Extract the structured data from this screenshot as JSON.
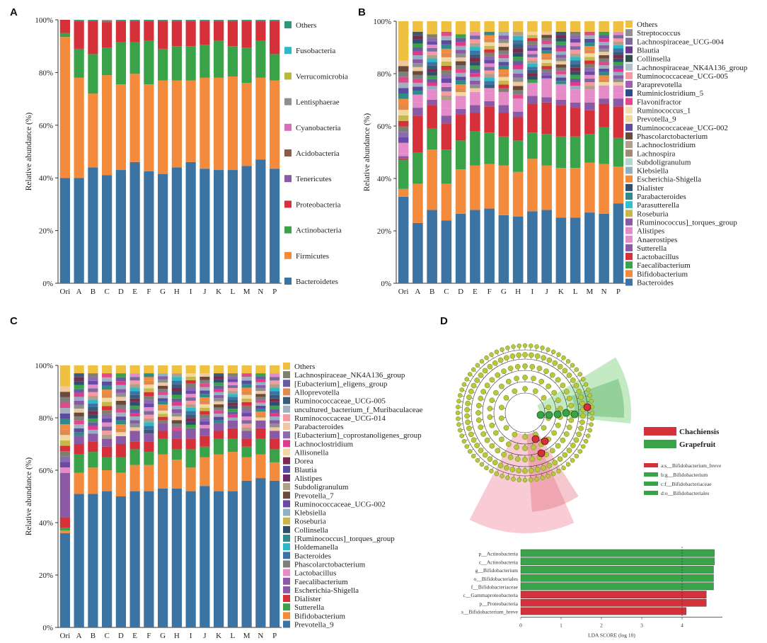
{
  "colors": {
    "Others": "#f0c040",
    "Prevotella_9": "#3b74a2",
    "Bacteroides": "#3b74a2",
    "Bifidobacterium": "#f48a3c",
    "Sutterella": "#3aa34a",
    "Faecalibacterium": "#3aa34a",
    "Lactobacillus": "#d6303a",
    "Dialister": "#d6303a",
    "Escherichia-Shigella": "#8a5aa6",
    "Anaerostipes": "#8a5aa6",
    "Alistipes": "#e58bc8",
    "Phascolarctobacterium": "#7f7f7f",
    "Holdemanella": "#2fb8c8",
    "Ruminococcus_torques": "#2f8a8a",
    "Collinsella": "#2f4f6a",
    "Roseburia": "#c8b84a",
    "Klebsiella": "#8fb0c0",
    "Ruminococcaceae_UCG-002": "#6a4aa6",
    "Prevotella_7": "#6a4a3a",
    "Subdoligranulum": "#b0a08a",
    "Blautia": "#5a4aa0",
    "Dorea": "#7a2a4a",
    "Allisonella": "#f0d8a0",
    "Lachnoclostridium": "#e0388a",
    "Eubacterium_coprostanoligenes": "#8a6ab0",
    "Parabacteroides": "#f0c8a0",
    "Ruminococcaceae_UCG-014": "#f49aa0",
    "uncultured_Muribaculaceae": "#a0b0c0",
    "Ruminococcaceae_UCG-005": "#3a5a7a",
    "Alloprevotella": "#e08a50",
    "Eubacterium_eligens": "#6a5aa0",
    "Lachnospiraceae_NK4A136": "#7f7f6f",
    "Streptococcus": "#8f8f8f",
    "Lachnospiraceae_UCG-004": "#7a6aa0",
    "Flavonifractor": "#e04a8a",
    "Ruminiclostridium_5": "#2a4a8a",
    "Paraprevotella": "#a060b0",
    "Ruminococcus_1": "#f0e0b0",
    "Parasutterella": "#30c0d0",
    "Lachnospira": "#a08a70",
    "Escherichia": "#f48a3c",
    "Fusobacteria": "#2fb8c8",
    "Verrucomicrobia": "#b8b83a",
    "Lentisphaerae": "#8f8f8f",
    "Cyanobacteria": "#d86fb8",
    "Acidobacteria": "#8a5a4a",
    "Tenericutes": "#8a5aa6",
    "Proteobacteria": "#d6303a",
    "Actinobacteria": "#3aa34a",
    "Firmicutes": "#f48a3c",
    "Bacteroidetes": "#3b74a2",
    "OthersA": "#2a9a7a",
    "lefse_red": "#d6303a",
    "lefse_green": "#3aa34a",
    "cladogram_node": "#b8c83a"
  },
  "chart_data": [
    {
      "type": "bar",
      "panel": "A",
      "ylabel": "Relative abundance (%)",
      "yticks": [
        "0%",
        "20%",
        "40%",
        "60%",
        "80%",
        "100%"
      ],
      "categories": [
        "Ori",
        "A",
        "B",
        "C",
        "D",
        "E",
        "F",
        "G",
        "H",
        "I",
        "J",
        "K",
        "L",
        "M",
        "N",
        "P"
      ],
      "series": [
        {
          "name": "Bacteroidetes",
          "values": [
            40,
            40,
            44,
            41,
            43,
            46,
            42.5,
            41.5,
            44,
            46,
            43.5,
            43,
            43,
            44.5,
            47,
            43.5
          ]
        },
        {
          "name": "Firmicutes",
          "values": [
            53.5,
            38,
            28,
            38,
            32.5,
            33.5,
            33,
            35.5,
            33,
            31,
            34.5,
            35,
            35.5,
            31.5,
            31,
            33.5
          ]
        },
        {
          "name": "Actinobacteria",
          "values": [
            1.5,
            11,
            15,
            10.5,
            16,
            12,
            16.5,
            12,
            13,
            13,
            12.5,
            14,
            11.5,
            13.5,
            14,
            10
          ]
        },
        {
          "name": "Proteobacteria",
          "values": [
            5,
            10.5,
            12.5,
            9.5,
            8,
            8,
            7.5,
            10.5,
            9.5,
            9.5,
            9,
            7.5,
            9.5,
            10,
            7.5,
            12.5
          ]
        },
        {
          "name": "Tenericutes",
          "values": [
            0,
            0,
            0,
            0,
            0,
            0,
            0,
            0,
            0,
            0,
            0,
            0,
            0,
            0,
            0,
            0
          ]
        },
        {
          "name": "Acidobacteria",
          "values": [
            0,
            0,
            0,
            0.5,
            0,
            0,
            0,
            0,
            0,
            0,
            0,
            0,
            0,
            0,
            0,
            0
          ]
        },
        {
          "name": "Cyanobacteria",
          "values": [
            0,
            0,
            0,
            0,
            0,
            0,
            0,
            0,
            0,
            0,
            0,
            0,
            0,
            0,
            0,
            0
          ]
        },
        {
          "name": "Lentisphaerae",
          "values": [
            0,
            0,
            0,
            0.5,
            0,
            0,
            0,
            0,
            0,
            0,
            0,
            0,
            0,
            0,
            0,
            0
          ]
        },
        {
          "name": "Verrucomicrobia",
          "values": [
            0,
            0,
            0,
            0,
            0,
            0,
            0,
            0,
            0,
            0,
            0,
            0,
            0,
            0,
            0,
            0
          ]
        },
        {
          "name": "Fusobacteria",
          "values": [
            0,
            0,
            0,
            0,
            0,
            0,
            0,
            0,
            0,
            0,
            0,
            0,
            0,
            0,
            0,
            0
          ]
        },
        {
          "name": "Others",
          "values": [
            0,
            0.5,
            0.5,
            0,
            0.5,
            0.5,
            0.5,
            0.5,
            0.5,
            0.5,
            0.5,
            0.5,
            0.5,
            0.5,
            0.5,
            0.5
          ]
        }
      ],
      "legend": [
        "Others",
        "Fusobacteria",
        "Verrucomicrobia",
        "Lentisphaerae",
        "Cyanobacteria",
        "Acidobacteria",
        "Tenericutes",
        "Proteobacteria",
        "Actinobacteria",
        "Firmicutes",
        "Bacteroidetes"
      ]
    },
    {
      "type": "bar",
      "panel": "B",
      "ylabel": "Relative abundance (%)",
      "yticks": [
        "0%",
        "20%",
        "40%",
        "60%",
        "80%",
        "100%"
      ],
      "categories": [
        "Ori",
        "A",
        "B",
        "C",
        "D",
        "E",
        "F",
        "G",
        "H",
        "I",
        "J",
        "K",
        "L",
        "M",
        "N",
        "P"
      ],
      "series": [
        {
          "name": "Bacteroides",
          "values": [
            33,
            23,
            28,
            24,
            26.5,
            28,
            28.5,
            26,
            25.5,
            27.5,
            28,
            25,
            25,
            27,
            26.5,
            30.5
          ]
        },
        {
          "name": "Bifidobacterium",
          "values": [
            3,
            15,
            23,
            14,
            17,
            17,
            17,
            19,
            17,
            20,
            17,
            19,
            19,
            19,
            19,
            14
          ]
        },
        {
          "name": "Faecalibacterium",
          "values": [
            11,
            12,
            8,
            13,
            11,
            13,
            12,
            11,
            12,
            10,
            12,
            12,
            12,
            11,
            14,
            11
          ]
        },
        {
          "name": "Lactobacillus",
          "values": [
            0.5,
            14,
            9,
            10,
            10,
            7,
            10,
            9,
            9,
            11,
            12,
            12,
            11,
            9,
            9,
            12
          ]
        },
        {
          "name": "Sutterella",
          "values": [
            1,
            3,
            2,
            3,
            2,
            3,
            2,
            3,
            2,
            3,
            2,
            2,
            2,
            3,
            2,
            3
          ]
        },
        {
          "name": "Anaerostipes",
          "values": [
            1,
            2,
            2,
            3,
            3,
            2,
            3,
            2,
            3,
            2,
            4,
            3,
            3,
            2,
            3,
            2
          ]
        },
        {
          "name": "Alistipes",
          "values": [
            2,
            3,
            2,
            3,
            2,
            3,
            2,
            3,
            2,
            3,
            2,
            3,
            2,
            3,
            2,
            3
          ]
        },
        {
          "name": "Others",
          "values": [
            15,
            4,
            5,
            4,
            5,
            4,
            4,
            4,
            4,
            4,
            4,
            4,
            4,
            4,
            4,
            4
          ]
        }
      ],
      "legend": [
        "Others",
        "Streptococcus",
        "Lachnospiraceae_UCG-004",
        "Blautia",
        "Collinsella",
        "Lachnospiraceae_NK4A136_group",
        "Ruminococcaceae_UCG-005",
        "Paraprevotella",
        "Ruminiclostridium_5",
        "Flavonifractor",
        "Ruminococcus_1",
        "Prevotella_9",
        "Ruminococcaceae_UCG-002",
        "Phascolarctobacterium",
        "Lachnoclostridium",
        "Lachnospira",
        "Subdoligranulum",
        "Klebsiella",
        "Escherichia-Shigella",
        "Dialister",
        "Parabacteroides",
        "Parasutterella",
        "Roseburia",
        "[Ruminococcus]_torques_group",
        "Alistipes",
        "Anaerostipes",
        "Sutterella",
        "Lactobacillus",
        "Faecalibacterium",
        "Bifidobacterium",
        "Bacteroides"
      ]
    },
    {
      "type": "bar",
      "panel": "C",
      "ylabel": "Relative abundance (%)",
      "yticks": [
        "0%",
        "20%",
        "40%",
        "60%",
        "80%",
        "100%"
      ],
      "categories": [
        "Ori",
        "A",
        "B",
        "C",
        "D",
        "E",
        "F",
        "G",
        "H",
        "I",
        "J",
        "K",
        "L",
        "M",
        "N",
        "P"
      ],
      "series": [
        {
          "name": "Prevotella_9",
          "values": [
            36,
            51,
            51,
            52,
            50,
            52,
            52,
            53,
            53,
            52,
            54,
            52,
            52,
            56,
            57,
            56
          ]
        },
        {
          "name": "Bifidobacterium",
          "values": [
            1,
            8,
            10,
            8,
            9,
            10,
            10,
            13,
            11,
            9,
            11,
            14,
            15,
            9,
            9,
            7
          ]
        },
        {
          "name": "Sutterella",
          "values": [
            1,
            7,
            6,
            5,
            6,
            6,
            5,
            6,
            4,
            7,
            4,
            6,
            5,
            4,
            6,
            5
          ]
        },
        {
          "name": "Dialister",
          "values": [
            4,
            4,
            4,
            4,
            5,
            3,
            4,
            3,
            4,
            4,
            4,
            3,
            4,
            3,
            4,
            4
          ]
        },
        {
          "name": "Escherichia-Shigella",
          "values": [
            17,
            3,
            3,
            3,
            3,
            4,
            3,
            3,
            3,
            4,
            3,
            3,
            3,
            3,
            3,
            3
          ]
        },
        {
          "name": "Others",
          "values": [
            8,
            3,
            3,
            3,
            3,
            3,
            3,
            3,
            3,
            3,
            3,
            3,
            3,
            3,
            3,
            3
          ]
        }
      ],
      "legend": [
        "Others",
        "Lachnospiraceae_NK4A136_group",
        "[Eubacterium]_eligens_group",
        "Alloprevotella",
        "Ruminococcaceae_UCG-005",
        "uncultured_bacterium_f_Muribaculaceae",
        "Ruminococcaceae_UCG-014",
        "Parabacteroides",
        "[Eubacterium]_coprostanoligenes_group",
        "Lachnoclostridium",
        "Allisonella",
        "Dorea",
        "Blautia",
        "Alistipes",
        "Subdoligranulum",
        "Prevotella_7",
        "Ruminococcaceae_UCG-002",
        "Klebsiella",
        "Roseburia",
        "Collinsella",
        "[Ruminococcus]_torques_group",
        "Holdemanella",
        "Bacteroides",
        "Phascolarctobacterium",
        "Lactobacillus",
        "Faecalibacterium",
        "Escherichia-Shigella",
        "Dialister",
        "Sutterella",
        "Bifidobacterium",
        "Prevotella_9"
      ]
    },
    {
      "type": "bar",
      "panel": "D",
      "orientation": "horizontal",
      "xlabel": "LDA SCORE (log 10)",
      "xlim": [
        0,
        5
      ],
      "xticks": [
        "0",
        "1",
        "2",
        "3",
        "4"
      ],
      "legend": [
        "Chachiensis",
        "Grapefruit"
      ],
      "clade_labels": [
        "a:s__Bifidobacterium_breve",
        "b:g__Bifidobacterium",
        "c:f__Bifidobacteriaceae",
        "d:o__Bifidobacteriales"
      ],
      "bars": [
        {
          "label": "p__Actinobacteria",
          "value": 4.8,
          "group": "Grapefruit"
        },
        {
          "label": "c__Actinobacteria",
          "value": 4.8,
          "group": "Grapefruit"
        },
        {
          "label": "g__Bifidobacterium",
          "value": 4.78,
          "group": "Grapefruit"
        },
        {
          "label": "o__Bifidobacteriales",
          "value": 4.78,
          "group": "Grapefruit"
        },
        {
          "label": "f__Bifidobacteriaceae",
          "value": 4.78,
          "group": "Grapefruit"
        },
        {
          "label": "c__Gammaproteobacteria",
          "value": 4.6,
          "group": "Chachiensis"
        },
        {
          "label": "p__Proteobacteria",
          "value": 4.6,
          "group": "Chachiensis"
        },
        {
          "label": "s__Bifidobacterium_breve",
          "value": 4.1,
          "group": "Chachiensis"
        }
      ]
    }
  ]
}
